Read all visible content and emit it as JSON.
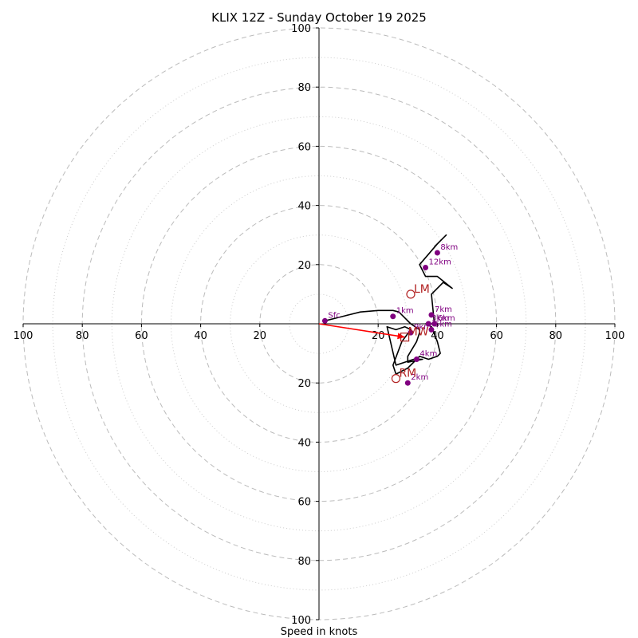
{
  "chart_data": {
    "type": "hodograph",
    "title": "KLIX 12Z - Sunday October 19 2025",
    "xlabel": "Speed in knots",
    "ylabel": "",
    "xlim": [
      -100,
      100
    ],
    "ylim": [
      -100,
      100
    ],
    "ring_values": [
      20,
      40,
      60,
      80,
      100
    ],
    "minor_ring_values": [
      10,
      30,
      50,
      70,
      90
    ],
    "x_tick_labels": [
      "100",
      "80",
      "60",
      "40",
      "20",
      "20",
      "40",
      "60",
      "80",
      "100"
    ],
    "x_tick_values": [
      -100,
      -80,
      -60,
      -40,
      -20,
      20,
      40,
      60,
      80,
      100
    ],
    "y_tick_labels": [
      "100",
      "80",
      "60",
      "40",
      "20",
      "20",
      "40",
      "60",
      "80",
      "100"
    ],
    "y_tick_values": [
      100,
      80,
      60,
      40,
      20,
      -20,
      -40,
      -60,
      -80,
      -100
    ],
    "trace": {
      "u": [
        2,
        6,
        10,
        14,
        20,
        25,
        27,
        31,
        34,
        34,
        33,
        30,
        30,
        35,
        32,
        26,
        23,
        26,
        29,
        31,
        28,
        25,
        26,
        30,
        33,
        34,
        37,
        40,
        41,
        40,
        38,
        36,
        39,
        38,
        42,
        45,
        40,
        36,
        34,
        40,
        43,
        39
      ],
      "v": [
        1,
        2,
        3,
        4,
        4.5,
        4.5,
        4,
        0,
        -2,
        -3,
        -6,
        -11,
        -13,
        -12,
        -12,
        -14,
        -1,
        -2,
        -1,
        -2,
        -6,
        -14,
        -17,
        -15,
        -12,
        -11,
        -12,
        -11,
        -10,
        -6,
        -1,
        0,
        0,
        10,
        14,
        12,
        16,
        16,
        20,
        27,
        30,
        26
      ]
    },
    "height_markers": [
      {
        "label": "Sfc",
        "u": 2,
        "v": 1
      },
      {
        "label": "1km",
        "u": 25,
        "v": 2.5
      },
      {
        "label": "2km",
        "u": 30,
        "v": -20
      },
      {
        "label": "3km",
        "u": 37,
        "v": 0
      },
      {
        "label": "4km",
        "u": 33,
        "v": -12
      },
      {
        "label": "5km",
        "u": 38,
        "v": -2
      },
      {
        "label": "6km",
        "u": 39,
        "v": 0
      },
      {
        "label": "7km",
        "u": 38,
        "v": 3
      },
      {
        "label": "9km",
        "u": 31,
        "v": -3
      },
      {
        "label": "12km",
        "u": 36,
        "v": 19
      },
      {
        "label": "8km",
        "u": 40,
        "v": 24
      }
    ],
    "motion_markers": [
      {
        "label": "LM",
        "u": 31,
        "v": 10,
        "shape": "circle"
      },
      {
        "label": "RM",
        "u": 26,
        "v": -18.5,
        "shape": "circle"
      },
      {
        "label": "MW",
        "u": 29,
        "v": -4.5,
        "shape": "square"
      }
    ],
    "arrow": {
      "u0": 0,
      "v0": 0,
      "u1": 29,
      "v1": -4.5
    },
    "colors": {
      "trace": "#000000",
      "height_marker": "#800080",
      "motion": "#b22222",
      "arrow": "#ff0000",
      "rings": "#bbbbbb",
      "minor_rings": "#cccccc",
      "axes": "#000000"
    }
  }
}
